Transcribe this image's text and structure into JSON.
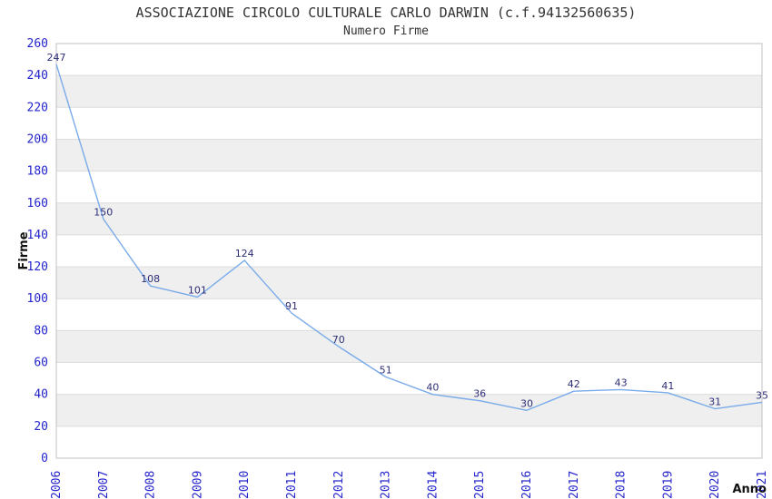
{
  "header": {
    "title": "ASSOCIAZIONE CIRCOLO CULTURALE CARLO DARWIN (c.f.94132560635)",
    "subtitle": "Numero Firme"
  },
  "chart_data": {
    "type": "line",
    "title": "ASSOCIAZIONE CIRCOLO CULTURALE CARLO DARWIN (c.f.94132560635)",
    "subtitle": "Numero Firme",
    "xlabel": "Anno",
    "ylabel": "Firme",
    "categories": [
      "2006",
      "2007",
      "2008",
      "2009",
      "2010",
      "2011",
      "2012",
      "2013",
      "2014",
      "2015",
      "2016",
      "2017",
      "2018",
      "2019",
      "2020",
      "2021"
    ],
    "values": [
      247,
      150,
      108,
      101,
      124,
      91,
      70,
      51,
      40,
      36,
      30,
      42,
      43,
      41,
      31,
      35
    ],
    "ylim": [
      0,
      260
    ],
    "ytick_step": 20,
    "yticks": [
      0,
      20,
      40,
      60,
      80,
      100,
      120,
      140,
      160,
      180,
      200,
      220,
      240,
      260
    ],
    "grid": "horizontal",
    "bands": "alternating-gray",
    "legend": "none",
    "data_labels": "above-points",
    "x_tick_rotation": -90,
    "colors": {
      "line": "#79abe9",
      "tick_label": "#2525cc",
      "data_label": "#2e2e78",
      "band": "#efefef",
      "gridline": "#dcdcdc",
      "border": "#c0c0c0",
      "title": "#333333"
    }
  }
}
